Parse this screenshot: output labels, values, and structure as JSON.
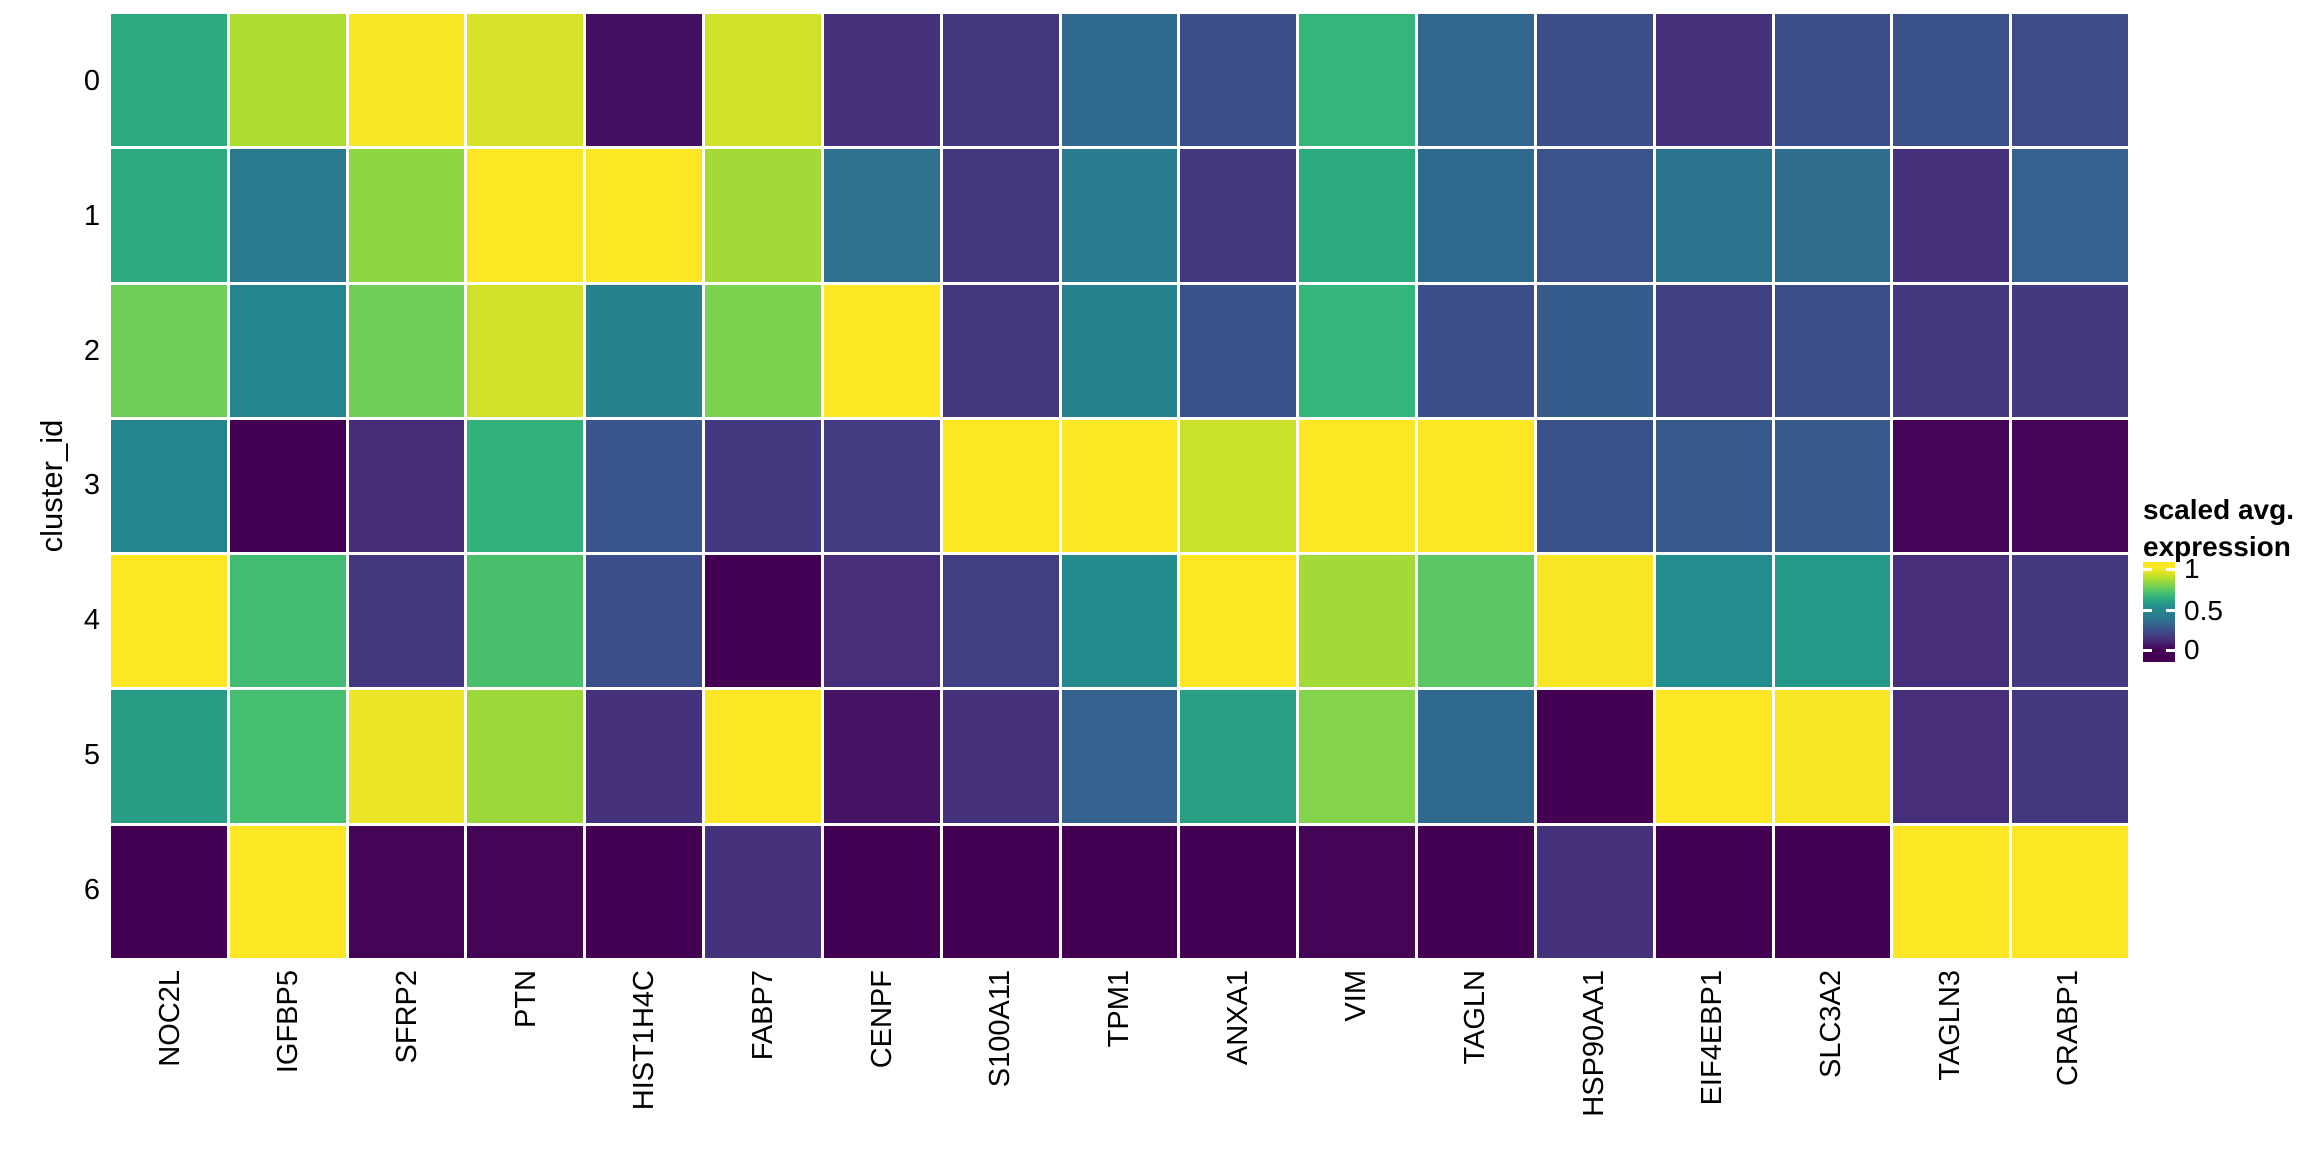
{
  "figure": {
    "background": "#ffffff",
    "text_color": "#000000",
    "cell_gap_color": "#ffffff"
  },
  "y_axis": {
    "title": "cluster_id",
    "labels": [
      "0",
      "1",
      "2",
      "3",
      "4",
      "5",
      "6"
    ]
  },
  "x_axis": {
    "labels": [
      "NOC2L",
      "IGFBP5",
      "SFRP2",
      "PTN",
      "HIST1H4C",
      "FABP7",
      "CENPF",
      "S100A11",
      "TPM1",
      "ANXA1",
      "VIM",
      "TAGLN",
      "HSP90AA1",
      "EIF4EBP1",
      "SLC3A2",
      "TAGLN3",
      "CRABP1"
    ]
  },
  "legend": {
    "title_line1": "scaled avg.",
    "title_line2": "expression",
    "tick_labels": [
      "1",
      "0.5",
      "0"
    ]
  },
  "colors": {
    "viridis_stops": [
      "#440154",
      "#482878",
      "#3e4989",
      "#31688e",
      "#26828e",
      "#21918c",
      "#35b779",
      "#6ece58",
      "#b5de2b",
      "#fde725"
    ]
  },
  "chart_data": {
    "type": "heatmap",
    "title": "",
    "xlabel": "",
    "ylabel": "cluster_id",
    "legend_title": "scaled avg. expression",
    "colormap": "viridis",
    "value_range": [
      0,
      1
    ],
    "legend_ticks": [
      1,
      0.5,
      0
    ],
    "columns": [
      "NOC2L",
      "IGFBP5",
      "SFRP2",
      "PTN",
      "HIST1H4C",
      "FABP7",
      "CENPF",
      "S100A11",
      "TPM1",
      "ANXA1",
      "VIM",
      "TAGLN",
      "HSP90AA1",
      "EIF4EBP1",
      "SLC3A2",
      "TAGLN3",
      "CRABP1"
    ],
    "rows": [
      "0",
      "1",
      "2",
      "3",
      "4",
      "5",
      "6"
    ],
    "values": [
      [
        0.63,
        0.88,
        0.99,
        0.94,
        0.04,
        0.93,
        0.14,
        0.16,
        0.34,
        0.24,
        0.66,
        0.33,
        0.24,
        0.14,
        0.24,
        0.25,
        0.23
      ],
      [
        0.63,
        0.41,
        0.83,
        1.0,
        1.0,
        0.86,
        0.37,
        0.16,
        0.42,
        0.17,
        0.63,
        0.34,
        0.26,
        0.38,
        0.35,
        0.14,
        0.31
      ],
      [
        0.78,
        0.47,
        0.78,
        0.93,
        0.45,
        0.8,
        1.0,
        0.16,
        0.45,
        0.25,
        0.66,
        0.24,
        0.29,
        0.19,
        0.24,
        0.17,
        0.17
      ],
      [
        0.47,
        0.0,
        0.12,
        0.65,
        0.27,
        0.17,
        0.18,
        1.0,
        1.0,
        0.92,
        1.0,
        1.0,
        0.25,
        0.28,
        0.28,
        0.01,
        0.01
      ],
      [
        1.0,
        0.69,
        0.16,
        0.71,
        0.24,
        0.0,
        0.13,
        0.19,
        0.5,
        1.0,
        0.86,
        0.74,
        0.99,
        0.52,
        0.58,
        0.13,
        0.17
      ],
      [
        0.59,
        0.7,
        0.97,
        0.85,
        0.14,
        1.0,
        0.05,
        0.14,
        0.31,
        0.6,
        0.81,
        0.34,
        0.0,
        1.0,
        0.99,
        0.13,
        0.16
      ],
      [
        0.0,
        1.0,
        0.01,
        0.01,
        0.0,
        0.14,
        0.0,
        0.0,
        0.0,
        0.0,
        0.01,
        0.0,
        0.14,
        0.0,
        0.0,
        1.0,
        1.0
      ]
    ]
  }
}
